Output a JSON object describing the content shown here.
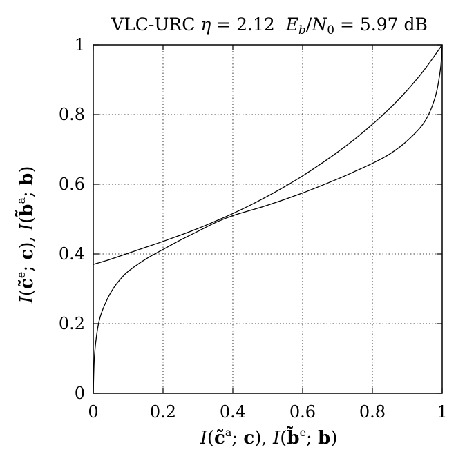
{
  "chart_data": {
    "type": "line",
    "title": "VLC-URC η = 2.12 E_b/N_0 = 5.97 dB",
    "title_parts": {
      "prefix": "VLC-URC",
      "eta_symbol": "η",
      "eta_value": "= 2.12",
      "eb": "E",
      "eb_sub": "b",
      "slash": "/",
      "n0": "N",
      "n0_sub": "0",
      "snr_value": "= 5.97 dB"
    },
    "xlabel": "I(c̃a; c), I(b̃e; b)",
    "ylabel": "I(c̃e; c), I(b̃a; b)",
    "xlim": [
      0,
      1
    ],
    "ylim": [
      0,
      1
    ],
    "x_ticks": [
      0,
      0.2,
      0.4,
      0.6,
      0.8,
      1
    ],
    "y_ticks": [
      0,
      0.2,
      0.4,
      0.6,
      0.8,
      1
    ],
    "x_tick_labels": [
      "0",
      "0.2",
      "0.4",
      "0.6",
      "0.8",
      "1"
    ],
    "y_tick_labels": [
      "0",
      "0.2",
      "0.4",
      "0.6",
      "0.8",
      "1"
    ],
    "grid": true,
    "series": [
      {
        "x": [
          0,
          0.05,
          0.1,
          0.15,
          0.2,
          0.25,
          0.3,
          0.35,
          0.4,
          0.45,
          0.5,
          0.55,
          0.6,
          0.65,
          0.7,
          0.75,
          0.8,
          0.85,
          0.9,
          0.95,
          1.0
        ],
        "y": [
          0.37,
          0.385,
          0.402,
          0.419,
          0.436,
          0.454,
          0.473,
          0.494,
          0.516,
          0.54,
          0.566,
          0.594,
          0.624,
          0.657,
          0.692,
          0.73,
          0.772,
          0.818,
          0.87,
          0.93,
          1.0
        ]
      },
      {
        "x": [
          0,
          0.003,
          0.01,
          0.02,
          0.04,
          0.06,
          0.08,
          0.1,
          0.15,
          0.2,
          0.25,
          0.3,
          0.35,
          0.4,
          0.5,
          0.6,
          0.7,
          0.75,
          0.8,
          0.85,
          0.9,
          0.95,
          0.98,
          0.995,
          1.0
        ],
        "y": [
          0.0,
          0.1,
          0.17,
          0.22,
          0.27,
          0.305,
          0.33,
          0.35,
          0.385,
          0.413,
          0.44,
          0.465,
          0.49,
          0.51,
          0.54,
          0.575,
          0.615,
          0.637,
          0.66,
          0.687,
          0.725,
          0.78,
          0.85,
          0.93,
          1.0
        ]
      }
    ]
  }
}
